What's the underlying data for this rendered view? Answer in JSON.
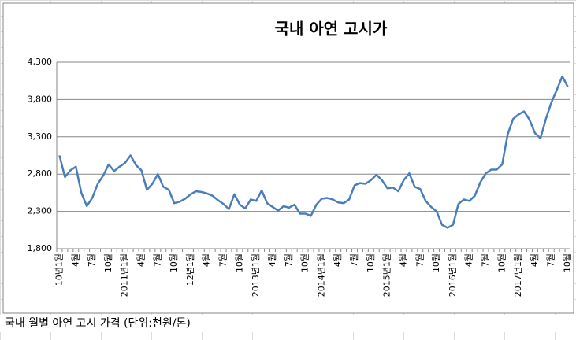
{
  "chart_data": {
    "type": "line",
    "title": "국내 아연 고시가",
    "note": "국내 월별 아연 고시 가격 (단위:천원/톤)",
    "categories": [
      "10년1월",
      null,
      null,
      "4월",
      null,
      null,
      "7월",
      null,
      null,
      "10월",
      null,
      null,
      "2011년1월",
      null,
      null,
      "4월",
      null,
      null,
      "7월",
      null,
      null,
      "10월",
      null,
      null,
      "12년1월",
      null,
      null,
      "4월",
      null,
      null,
      "7월",
      null,
      null,
      "10월",
      null,
      null,
      "2013년1월",
      null,
      null,
      "4월",
      null,
      null,
      "7월",
      null,
      null,
      "10월",
      null,
      null,
      "2014년1월",
      null,
      null,
      "4월",
      null,
      null,
      "7월",
      null,
      null,
      "10월",
      null,
      null,
      "2015년1월",
      null,
      null,
      "4월",
      null,
      null,
      "7월",
      null,
      null,
      "10월",
      null,
      null,
      "2016년1월",
      null,
      null,
      "4월",
      null,
      null,
      "7월",
      null,
      null,
      "10월",
      null,
      null,
      "2017년1월",
      null,
      null,
      "4월",
      null,
      null,
      "7월",
      null,
      null,
      "10월"
    ],
    "series": [
      {
        "color": "#4a7ebb",
        "values": [
          3050,
          2760,
          2850,
          2900,
          2550,
          2370,
          2480,
          2670,
          2780,
          2930,
          2840,
          2900,
          2950,
          3050,
          2920,
          2850,
          2590,
          2670,
          2800,
          2630,
          2590,
          2410,
          2430,
          2470,
          2530,
          2570,
          2560,
          2540,
          2510,
          2450,
          2400,
          2330,
          2530,
          2390,
          2340,
          2460,
          2440,
          2580,
          2410,
          2360,
          2310,
          2370,
          2350,
          2390,
          2270,
          2270,
          2240,
          2390,
          2470,
          2480,
          2460,
          2420,
          2410,
          2460,
          2650,
          2680,
          2670,
          2720,
          2790,
          2720,
          2610,
          2620,
          2570,
          2720,
          2810,
          2630,
          2600,
          2440,
          2360,
          2300,
          2120,
          2080,
          2120,
          2400,
          2460,
          2440,
          2510,
          2690,
          2810,
          2860,
          2860,
          2930,
          3330,
          3540,
          3600,
          3640,
          3530,
          3350,
          3280,
          3540,
          3760,
          3930,
          4110,
          3970
        ]
      }
    ],
    "ylim": [
      1800,
      4300
    ],
    "yticks": [
      {
        "value": 1800,
        "label": "1,800"
      },
      {
        "value": 2300,
        "label": "2,300"
      },
      {
        "value": 2800,
        "label": "2,800"
      },
      {
        "value": 3300,
        "label": "3,300"
      },
      {
        "value": 3800,
        "label": "3,800"
      },
      {
        "value": 4300,
        "label": "4,300"
      }
    ],
    "grid": true
  }
}
